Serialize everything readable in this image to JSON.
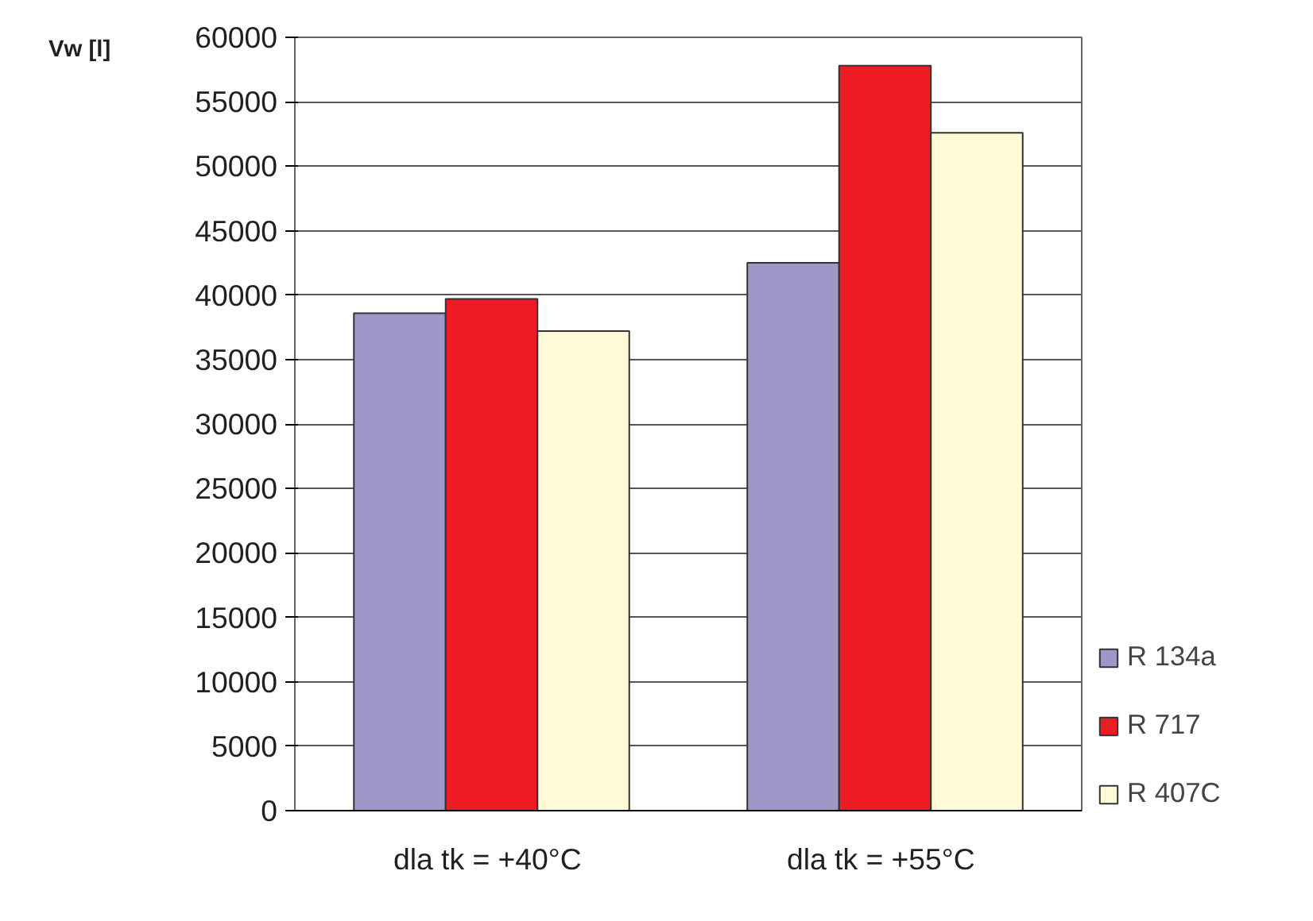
{
  "chart_data": {
    "type": "bar",
    "ylabel": "Vw  [l]",
    "categories": [
      "dla  tk = +40°C",
      "dla  tk = +55°C"
    ],
    "series": [
      {
        "name": "R 134a",
        "color": "#9d98c8",
        "values": [
          38600,
          42500
        ]
      },
      {
        "name": "R 717",
        "color": "#ed1c24",
        "values": [
          39700,
          57800
        ]
      },
      {
        "name": "R 407C",
        "color": "#fffad6",
        "values": [
          37200,
          52600
        ]
      }
    ],
    "ylim": [
      0,
      60000
    ],
    "yticks": [
      0,
      5000,
      10000,
      15000,
      20000,
      25000,
      30000,
      35000,
      40000,
      45000,
      50000,
      55000,
      60000
    ],
    "grid": "y",
    "legend": "right"
  }
}
